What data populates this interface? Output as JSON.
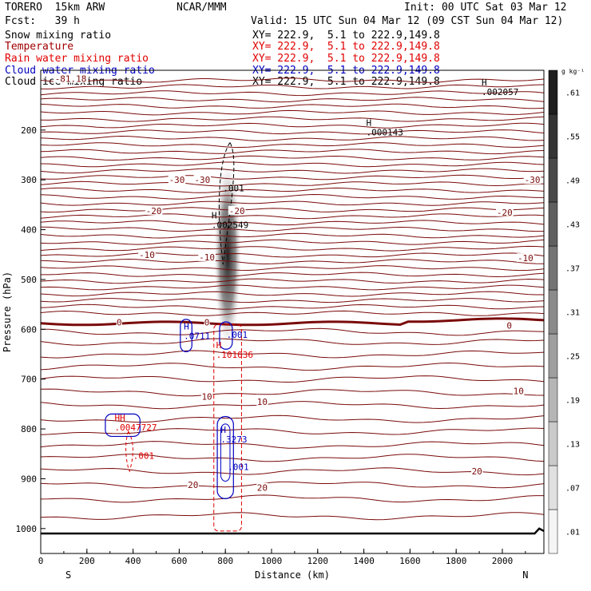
{
  "header": {
    "model": "TORERO  15km ARW",
    "fcst": "Fcst:   39 h",
    "center": "NCAR/MMM",
    "init": "Init: 00 UTC Sat 03 Mar 12",
    "valid": "Valid: 15 UTC Sun 04 Mar 12 (09 CST Sun 04 Mar 12)"
  },
  "fields": [
    {
      "label": "Snow mixing ratio",
      "xy": "XY= 222.9,  5.1 to 222.9,149.8",
      "color": "#000000"
    },
    {
      "label": "Temperature",
      "xy": "XY= 222.9,  5.1 to 222.9,149.8",
      "color": "#a00000"
    },
    {
      "label": "Rain water mixing ratio",
      "xy": "XY= 222.9,  5.1 to 222.9,149.8",
      "color": "#e00000"
    },
    {
      "label": "Cloud water mixing ratio",
      "xy": "XY= 222.9,  5.1 to 222.9,149.8",
      "color": "#0000c0"
    },
    {
      "label": "Cloud ice mixing ratio",
      "xy": "XY= 222.9,  5.1 to 222.9,149.8",
      "color": "#000000"
    }
  ],
  "chart_data": {
    "type": "cross-section",
    "xlabel": "Distance (km)",
    "ylabel": "Pressure (hPa)",
    "xlim": [
      0,
      2180
    ],
    "ylim": [
      1050,
      80
    ],
    "x_ticks": [
      0,
      200,
      400,
      600,
      800,
      1000,
      1200,
      1400,
      1600,
      1800,
      2000
    ],
    "y_ticks": [
      200,
      300,
      400,
      500,
      600,
      700,
      800,
      900,
      1000
    ],
    "x_end_labels": {
      "left": "S",
      "right": "N"
    },
    "colorbar": {
      "unit": "g kg⁻¹",
      "ticks": [
        ".01",
        ".07",
        ".13",
        ".19",
        ".25",
        ".31",
        ".37",
        ".43",
        ".49",
        ".55",
        ".61"
      ]
    },
    "temperature_labels": [
      {
        "x": 130,
        "p": 97,
        "text": "-81.18"
      },
      {
        "x": 590,
        "p": 300,
        "text": "-30"
      },
      {
        "x": 700,
        "p": 300,
        "text": "-30"
      },
      {
        "x": 2130,
        "p": 300,
        "text": "-30"
      },
      {
        "x": 490,
        "p": 362,
        "text": "-20"
      },
      {
        "x": 850,
        "p": 362,
        "text": "-20"
      },
      {
        "x": 2010,
        "p": 365,
        "text": "-20"
      },
      {
        "x": 460,
        "p": 450,
        "text": "-10"
      },
      {
        "x": 720,
        "p": 455,
        "text": "-10"
      },
      {
        "x": 2100,
        "p": 457,
        "text": "-10"
      },
      {
        "x": 340,
        "p": 586,
        "text": "0"
      },
      {
        "x": 720,
        "p": 586,
        "text": "0"
      },
      {
        "x": 2030,
        "p": 592,
        "text": "0"
      },
      {
        "x": 720,
        "p": 735,
        "text": "10"
      },
      {
        "x": 960,
        "p": 745,
        "text": "10"
      },
      {
        "x": 2070,
        "p": 724,
        "text": "10"
      },
      {
        "x": 660,
        "p": 912,
        "text": "20"
      },
      {
        "x": 960,
        "p": 918,
        "text": "20"
      },
      {
        "x": 1890,
        "p": 885,
        "text": "20"
      }
    ],
    "extrema_labels": [
      {
        "x": 1910,
        "p": 125,
        "mark": "H",
        "text": ".002057",
        "color": "#000000"
      },
      {
        "x": 1410,
        "p": 206,
        "mark": "H",
        "text": ".000143",
        "color": "#000000"
      },
      {
        "x": 790,
        "p": 318,
        "mark": "",
        "text": ".001",
        "color": "#000000"
      },
      {
        "x": 740,
        "p": 392,
        "mark": "H",
        "text": ".002549",
        "color": "#000000"
      },
      {
        "x": 620,
        "p": 615,
        "mark": "H",
        "text": ".0711",
        "color": "#0000c0"
      },
      {
        "x": 805,
        "p": 612,
        "mark": "",
        "text": ".001",
        "color": "#0000c0"
      },
      {
        "x": 760,
        "p": 652,
        "mark": "H",
        "text": ".101036",
        "color": "#e00000"
      },
      {
        "x": 320,
        "p": 798,
        "mark": "HH",
        "text": ".0047727",
        "color": "#e00000"
      },
      {
        "x": 780,
        "p": 822,
        "mark": "H",
        "text": ".3273",
        "color": "#0000c0"
      },
      {
        "x": 810,
        "p": 878,
        "mark": "",
        "text": ".001",
        "color": "#0000c0"
      },
      {
        "x": 400,
        "p": 855,
        "mark": "",
        "text": ".001",
        "color": "#e00000"
      }
    ],
    "snow_max": {
      "x": 810,
      "p": 500,
      "value": 0.42
    }
  }
}
